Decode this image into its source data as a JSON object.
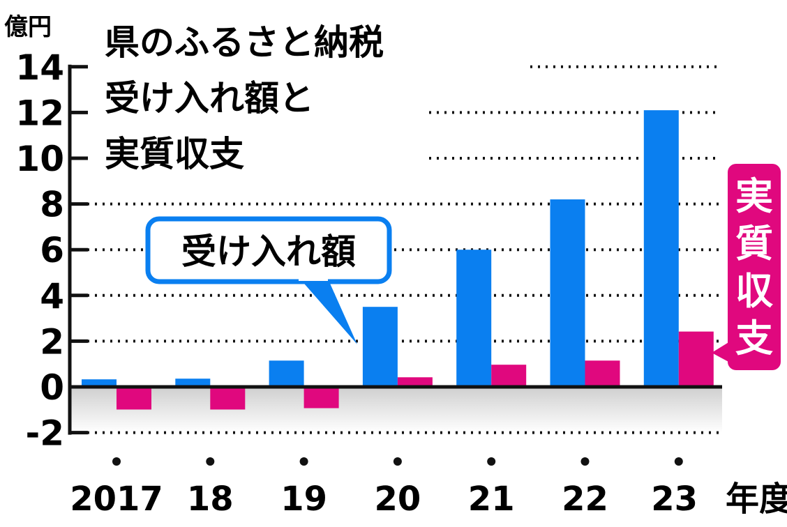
{
  "chart_data": {
    "type": "bar",
    "title_lines": [
      "県のふるさと納税",
      "受け入れ額と",
      "実質収支"
    ],
    "ylabel": "億円",
    "xlabel_suffix": "年度",
    "categories": [
      "2017",
      "18",
      "19",
      "20",
      "21",
      "22",
      "23"
    ],
    "ylim": [
      -2,
      14
    ],
    "yticks": [
      14,
      12,
      10,
      8,
      6,
      4,
      2,
      0,
      -2
    ],
    "grid": true,
    "series": [
      {
        "name": "受け入れ額",
        "color": "#0a7ff0",
        "values": [
          0.33,
          0.36,
          1.15,
          3.5,
          6.0,
          8.2,
          12.1
        ]
      },
      {
        "name": "実質収支",
        "color": "#e0087e",
        "values": [
          -0.99,
          -0.99,
          -0.93,
          0.42,
          0.97,
          1.15,
          2.42
        ]
      }
    ]
  }
}
